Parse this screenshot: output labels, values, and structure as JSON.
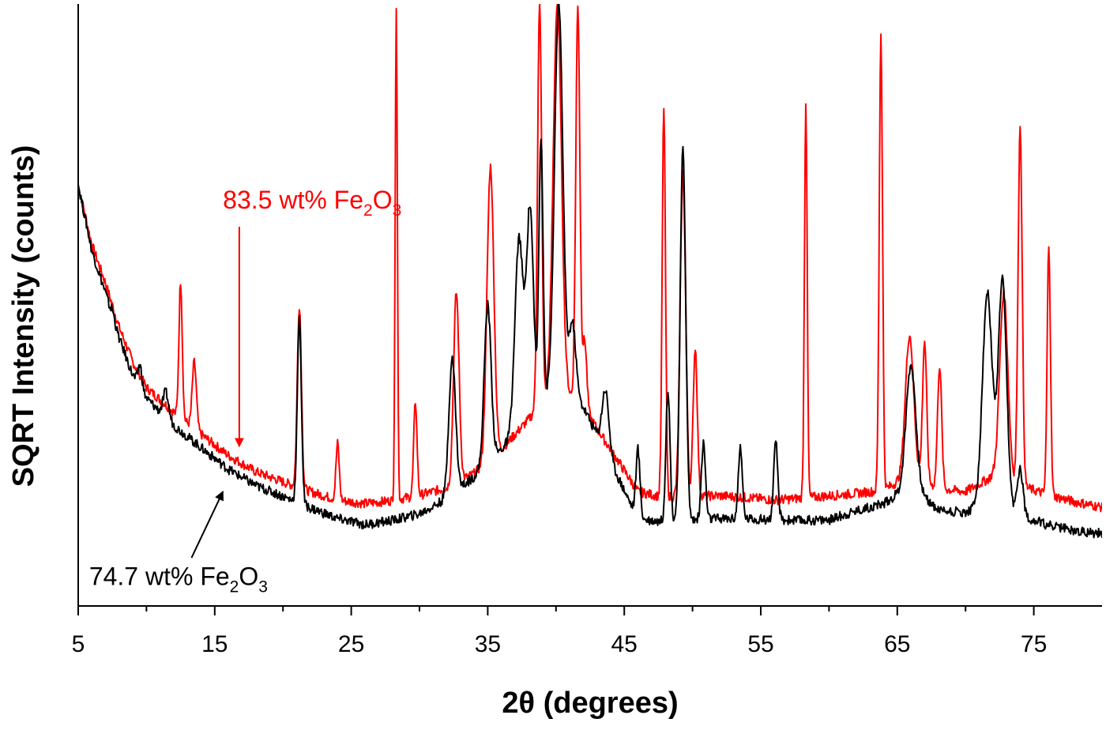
{
  "chart_data": {
    "type": "line",
    "xlabel": "2θ (degrees)",
    "ylabel": "SQRT Intensity (counts)",
    "xlim": [
      5,
      80
    ],
    "ylim": [
      0,
      100
    ],
    "x_ticks": [
      "5",
      "15",
      "25",
      "35",
      "45",
      "55",
      "65",
      "75"
    ],
    "grid": false,
    "legend": "none",
    "series": [
      {
        "color": "#ff0000",
        "baseline": [
          [
            5,
            70.0
          ],
          [
            6,
            60.0
          ],
          [
            7,
            53.6
          ],
          [
            8,
            46.3
          ],
          [
            9,
            40.5
          ],
          [
            10,
            36.3
          ],
          [
            12,
            32.2
          ],
          [
            14,
            28.5
          ],
          [
            16,
            25.0
          ],
          [
            18,
            22.3
          ],
          [
            20,
            20.6
          ],
          [
            22,
            19.0
          ],
          [
            24,
            17.6
          ],
          [
            26,
            17.0
          ],
          [
            28,
            17.5
          ],
          [
            30,
            18.4
          ],
          [
            32,
            19.6
          ],
          [
            34,
            22.0
          ],
          [
            36,
            26.0
          ],
          [
            38,
            31.0
          ],
          [
            40,
            37.0
          ],
          [
            42,
            33.0
          ],
          [
            44,
            26.0
          ],
          [
            46,
            19.0
          ],
          [
            48,
            18.0
          ],
          [
            50,
            18.3
          ],
          [
            52,
            18.3
          ],
          [
            54,
            18.0
          ],
          [
            56,
            17.6
          ],
          [
            58,
            17.9
          ],
          [
            60,
            18.3
          ],
          [
            62,
            18.7
          ],
          [
            64,
            19.2
          ],
          [
            66,
            22.0
          ],
          [
            68,
            19.5
          ],
          [
            70,
            19.0
          ],
          [
            72,
            21.5
          ],
          [
            74,
            20.0
          ],
          [
            76,
            18.5
          ],
          [
            78,
            17.3
          ],
          [
            80,
            16.4
          ]
        ],
        "peaks": [
          [
            12.5,
            54.0,
            0.12
          ],
          [
            13.5,
            40.5,
            0.15
          ],
          [
            21.2,
            50.0,
            0.15
          ],
          [
            24.0,
            27.0,
            0.12
          ],
          [
            28.3,
            100.0,
            0.08
          ],
          [
            29.7,
            34.0,
            0.12
          ],
          [
            32.7,
            52.0,
            0.2
          ],
          [
            35.2,
            73.0,
            0.25
          ],
          [
            38.8,
            100.0,
            0.15
          ],
          [
            40.1,
            100.0,
            0.3
          ],
          [
            41.6,
            100.0,
            0.15
          ],
          [
            42.1,
            44.0,
            0.15
          ],
          [
            47.9,
            83.0,
            0.12
          ],
          [
            49.3,
            72.0,
            0.2
          ],
          [
            50.2,
            43.0,
            0.15
          ],
          [
            58.3,
            84.0,
            0.1
          ],
          [
            63.8,
            95.0,
            0.12
          ],
          [
            65.9,
            45.0,
            0.3
          ],
          [
            67.0,
            44.0,
            0.15
          ],
          [
            68.1,
            40.0,
            0.15
          ],
          [
            72.8,
            52.0,
            0.3
          ],
          [
            74.0,
            80.0,
            0.15
          ],
          [
            76.1,
            60.0,
            0.12
          ]
        ]
      },
      {
        "color": "#000000",
        "baseline": [
          [
            5,
            70.0
          ],
          [
            6,
            59.0
          ],
          [
            7,
            52.0
          ],
          [
            8,
            44.5
          ],
          [
            9,
            38.3
          ],
          [
            10,
            34.5
          ],
          [
            12,
            30.0
          ],
          [
            14,
            26.3
          ],
          [
            16,
            22.7
          ],
          [
            18,
            20.0
          ],
          [
            20,
            18.2
          ],
          [
            22,
            16.3
          ],
          [
            24,
            14.5
          ],
          [
            26,
            13.5
          ],
          [
            28,
            14.2
          ],
          [
            30,
            15.3
          ],
          [
            32,
            17.8
          ],
          [
            34,
            21.5
          ],
          [
            36,
            26.0
          ],
          [
            38,
            31.0
          ],
          [
            40,
            37.0
          ],
          [
            42,
            33.0
          ],
          [
            44,
            24.0
          ],
          [
            46,
            14.5
          ],
          [
            48,
            14.0
          ],
          [
            50,
            14.3
          ],
          [
            52,
            14.5
          ],
          [
            54,
            14.5
          ],
          [
            56,
            14.3
          ],
          [
            58,
            14.2
          ],
          [
            60,
            14.3
          ],
          [
            62,
            15.8
          ],
          [
            64,
            17.0
          ],
          [
            66,
            20.0
          ],
          [
            68,
            16.0
          ],
          [
            70,
            15.5
          ],
          [
            72,
            18.0
          ],
          [
            74,
            15.0
          ],
          [
            76,
            13.5
          ],
          [
            78,
            12.5
          ],
          [
            80,
            12.0
          ]
        ],
        "peaks": [
          [
            7.4,
            49.5,
            0.15
          ],
          [
            9.5,
            40.0,
            0.15
          ],
          [
            11.4,
            35.5,
            0.2
          ],
          [
            21.2,
            47.5,
            0.15
          ],
          [
            32.4,
            41.0,
            0.25
          ],
          [
            35.0,
            50.0,
            0.25
          ],
          [
            37.3,
            61.0,
            0.3
          ],
          [
            38.1,
            66.0,
            0.25
          ],
          [
            38.9,
            78.0,
            0.15
          ],
          [
            40.2,
            100.0,
            0.3
          ],
          [
            41.2,
            47.0,
            0.25
          ],
          [
            43.6,
            36.0,
            0.25
          ],
          [
            46.0,
            26.0,
            0.15
          ],
          [
            48.2,
            36.0,
            0.15
          ],
          [
            49.3,
            76.0,
            0.2
          ],
          [
            50.8,
            27.0,
            0.15
          ],
          [
            53.5,
            26.0,
            0.15
          ],
          [
            56.1,
            27.0,
            0.15
          ],
          [
            66.0,
            40.0,
            0.35
          ],
          [
            71.6,
            52.0,
            0.35
          ],
          [
            72.7,
            54.0,
            0.3
          ],
          [
            74.0,
            23.0,
            0.2
          ]
        ]
      }
    ],
    "annotations": [
      {
        "text": "83.5 wt% Fe",
        "sub": "2",
        "tail": "O",
        "sub2": "3",
        "color": "#ff0000",
        "x": 15.6,
        "y": 66.0,
        "arrow_from": [
          16.8,
          63.0
        ],
        "arrow_to": [
          16.8,
          26.5
        ]
      },
      {
        "text": "74.7 wt% Fe",
        "sub": "2",
        "tail": "O",
        "sub2": "3",
        "color": "#000000",
        "x": 5.8,
        "y": 3.5,
        "arrow_from": [
          13.3,
          8.0
        ],
        "arrow_to": [
          15.6,
          19.0
        ]
      }
    ]
  }
}
